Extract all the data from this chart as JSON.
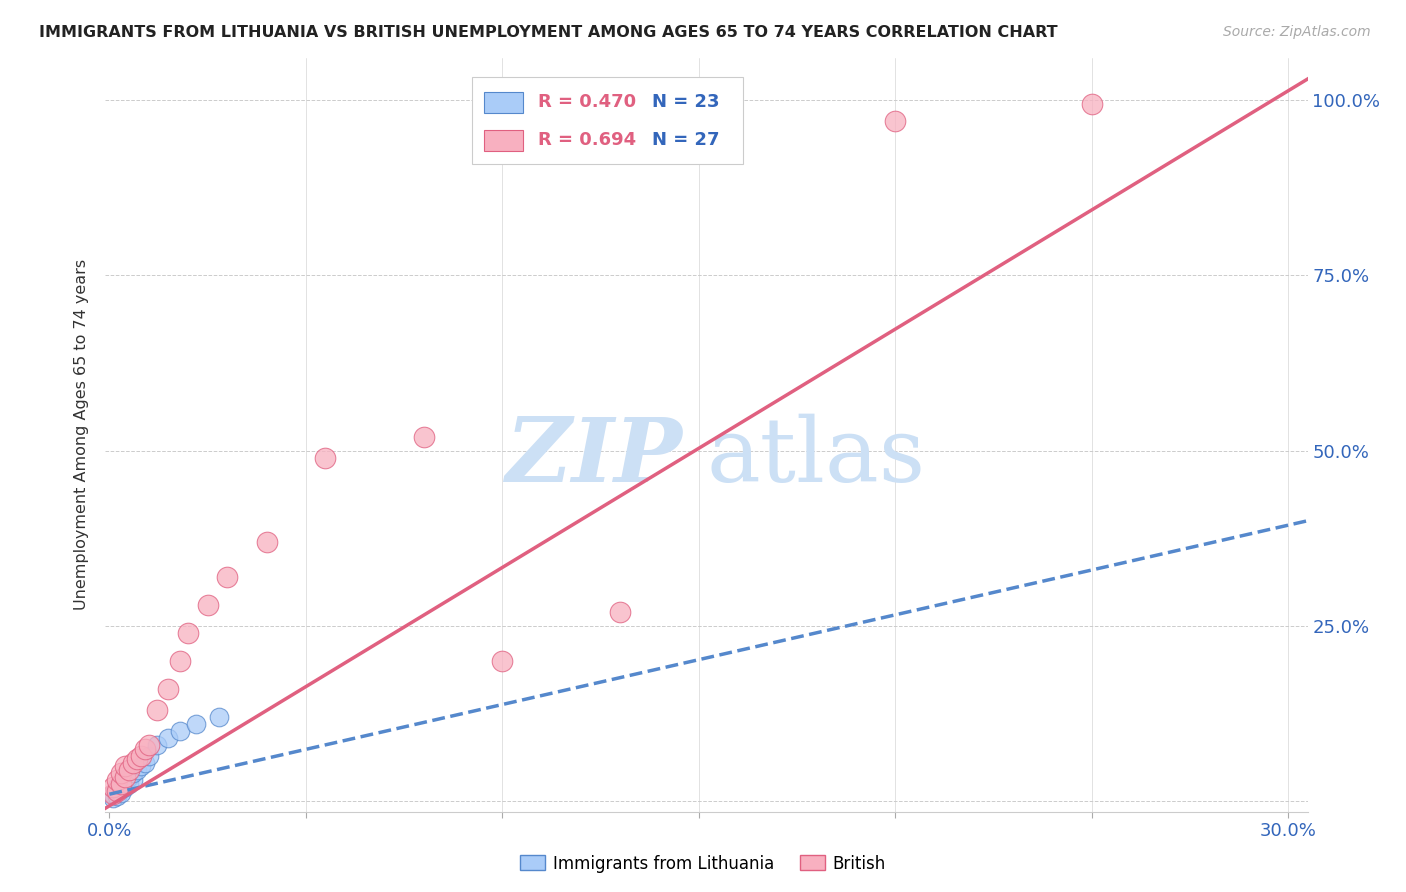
{
  "title": "IMMIGRANTS FROM LITHUANIA VS BRITISH UNEMPLOYMENT AMONG AGES 65 TO 74 YEARS CORRELATION CHART",
  "source": "Source: ZipAtlas.com",
  "ylabel": "Unemployment Among Ages 65 to 74 years",
  "xlim": [
    -0.001,
    0.305
  ],
  "ylim": [
    -0.015,
    1.06
  ],
  "xticks": [
    0.0,
    0.05,
    0.1,
    0.15,
    0.2,
    0.25,
    0.3
  ],
  "xticklabels": [
    "0.0%",
    "",
    "",
    "",
    "",
    "",
    "30.0%"
  ],
  "yticks": [
    0.0,
    0.25,
    0.5,
    0.75,
    1.0
  ],
  "yticklabels": [
    "",
    "25.0%",
    "50.0%",
    "75.0%",
    "100.0%"
  ],
  "legend1_r": "R = 0.470",
  "legend1_n": "N = 23",
  "legend2_r": "R = 0.694",
  "legend2_n": "N = 27",
  "blue_face": "#aaccf8",
  "blue_edge": "#5588cc",
  "pink_face": "#f8b0c0",
  "pink_edge": "#e06080",
  "blue_line": "#5588cc",
  "pink_line": "#e06080",
  "bg_color": "#ffffff",
  "grid_color": "#cccccc",
  "title_color": "#222222",
  "tick_color": "#3366bb",
  "r_color": "#e06080",
  "n_color": "#3366bb",
  "blue_scatter_x": [
    0.001,
    0.001,
    0.002,
    0.002,
    0.002,
    0.003,
    0.003,
    0.003,
    0.004,
    0.004,
    0.005,
    0.005,
    0.006,
    0.006,
    0.007,
    0.008,
    0.009,
    0.01,
    0.012,
    0.015,
    0.018,
    0.022,
    0.028
  ],
  "blue_scatter_y": [
    0.005,
    0.01,
    0.008,
    0.015,
    0.02,
    0.012,
    0.018,
    0.025,
    0.02,
    0.03,
    0.025,
    0.035,
    0.03,
    0.04,
    0.045,
    0.05,
    0.055,
    0.065,
    0.08,
    0.09,
    0.1,
    0.11,
    0.12
  ],
  "pink_scatter_x": [
    0.001,
    0.001,
    0.002,
    0.002,
    0.003,
    0.003,
    0.004,
    0.004,
    0.005,
    0.006,
    0.007,
    0.008,
    0.009,
    0.01,
    0.012,
    0.015,
    0.018,
    0.02,
    0.025,
    0.03,
    0.04,
    0.055,
    0.08,
    0.1,
    0.13,
    0.2,
    0.25
  ],
  "pink_scatter_y": [
    0.01,
    0.02,
    0.015,
    0.03,
    0.025,
    0.04,
    0.035,
    0.05,
    0.045,
    0.055,
    0.06,
    0.065,
    0.075,
    0.08,
    0.13,
    0.16,
    0.2,
    0.24,
    0.28,
    0.32,
    0.37,
    0.49,
    0.52,
    0.2,
    0.27,
    0.97,
    0.995
  ],
  "blue_trend_x": [
    0.0,
    0.305
  ],
  "blue_trend_y": [
    0.01,
    0.4
  ],
  "pink_trend_x": [
    -0.001,
    0.305
  ],
  "pink_trend_y": [
    -0.01,
    1.03
  ],
  "watermark_zip_color": "#cce0f5",
  "watermark_atlas_color": "#cce0f5"
}
